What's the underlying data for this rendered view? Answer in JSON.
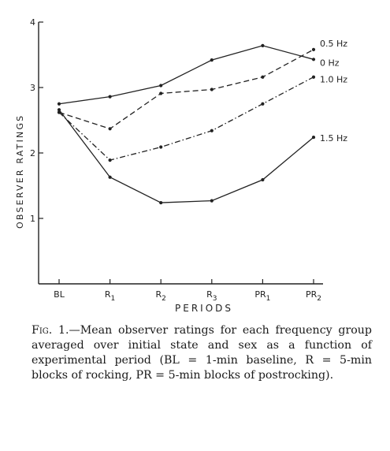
{
  "chart_data": {
    "type": "line",
    "xlabel": "PERIODS",
    "ylabel": "OBSERVER RATINGS",
    "categories": [
      "BL",
      "R1",
      "R2",
      "R3",
      "PR1",
      "PR2"
    ],
    "yticks": [
      "1",
      "2",
      "3",
      "4"
    ],
    "ylim": [
      0,
      4
    ],
    "grid": false,
    "series": [
      {
        "name": "0 Hz",
        "values": [
          2.75,
          2.86,
          3.03,
          3.42,
          3.64,
          3.43
        ],
        "dash": "solid"
      },
      {
        "name": "0.5 Hz",
        "values": [
          2.62,
          2.37,
          2.91,
          2.97,
          3.16,
          3.58
        ],
        "dash": "dashed"
      },
      {
        "name": "1.0 Hz",
        "values": [
          2.62,
          1.89,
          2.09,
          2.34,
          2.75,
          3.16
        ],
        "dash": "dashdot"
      },
      {
        "name": "1.5 Hz",
        "values": [
          2.66,
          1.63,
          1.24,
          1.27,
          1.59,
          2.24
        ],
        "dash": "solid"
      }
    ]
  },
  "caption": {
    "fig": "Fig. 1.",
    "text": "—Mean observer ratings for each frequency group averaged over initial state and sex as a function of experimental period (BL = 1-min baseline, R = 5-min blocks of rocking, PR = 5-min blocks of postrocking)."
  }
}
